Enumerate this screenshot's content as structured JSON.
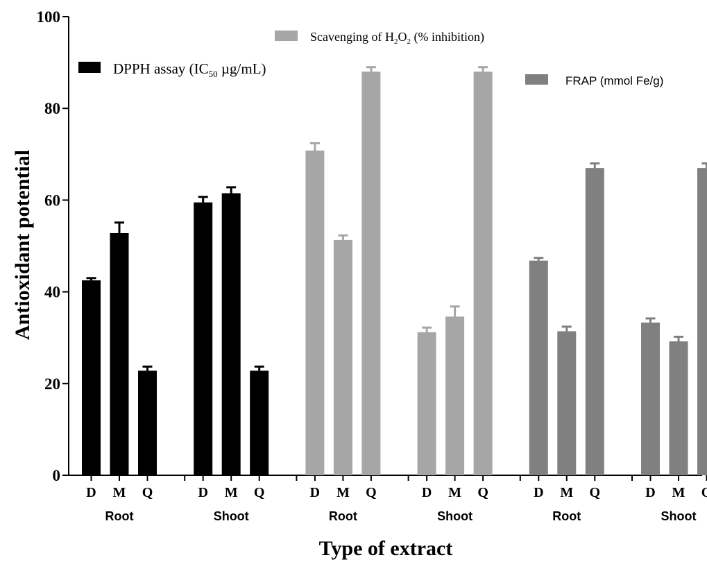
{
  "chart_data": {
    "type": "bar",
    "xlabel": "Type of extract",
    "ylabel": "Antioxidant potential",
    "ylim": [
      0,
      100
    ],
    "yticks": [
      "0",
      "20",
      "40",
      "60",
      "80",
      "100"
    ],
    "ytick_values": [
      0,
      20,
      40,
      60,
      80,
      100
    ],
    "categories": [
      "D",
      "M",
      "Q"
    ],
    "series": [
      {
        "name_parts": [
          "DPPH assay (IC",
          "50",
          " µg/mL)"
        ],
        "color": "#000000",
        "groups": [
          {
            "label": "Root",
            "values": [
              42.5,
              52.8,
              22.8
            ],
            "errors": [
              0.5,
              2.3,
              0.9
            ]
          },
          {
            "label": "Shoot",
            "values": [
              59.5,
              61.5,
              22.8
            ],
            "errors": [
              1.2,
              1.3,
              0.9
            ]
          }
        ]
      },
      {
        "name_parts": [
          "Scavenging of H",
          "2",
          "O",
          "2",
          " (% inhibition)"
        ],
        "color": "#a6a6a6",
        "groups": [
          {
            "label": "Root",
            "values": [
              70.8,
              51.3,
              88.0
            ],
            "errors": [
              1.6,
              1.0,
              1.0
            ]
          },
          {
            "label": "Shoot",
            "values": [
              31.2,
              34.6,
              88.0
            ],
            "errors": [
              1.0,
              2.2,
              1.0
            ]
          }
        ]
      },
      {
        "name": "FRAP  (mmol Fe/g)",
        "color": "#808080",
        "groups": [
          {
            "label": "Root",
            "values": [
              46.8,
              31.4,
              67.0
            ],
            "errors": [
              0.6,
              1.0,
              1.0
            ]
          },
          {
            "label": "Shoot",
            "values": [
              33.3,
              29.2,
              67.0
            ],
            "errors": [
              0.9,
              1.0,
              1.0
            ]
          }
        ]
      }
    ]
  }
}
